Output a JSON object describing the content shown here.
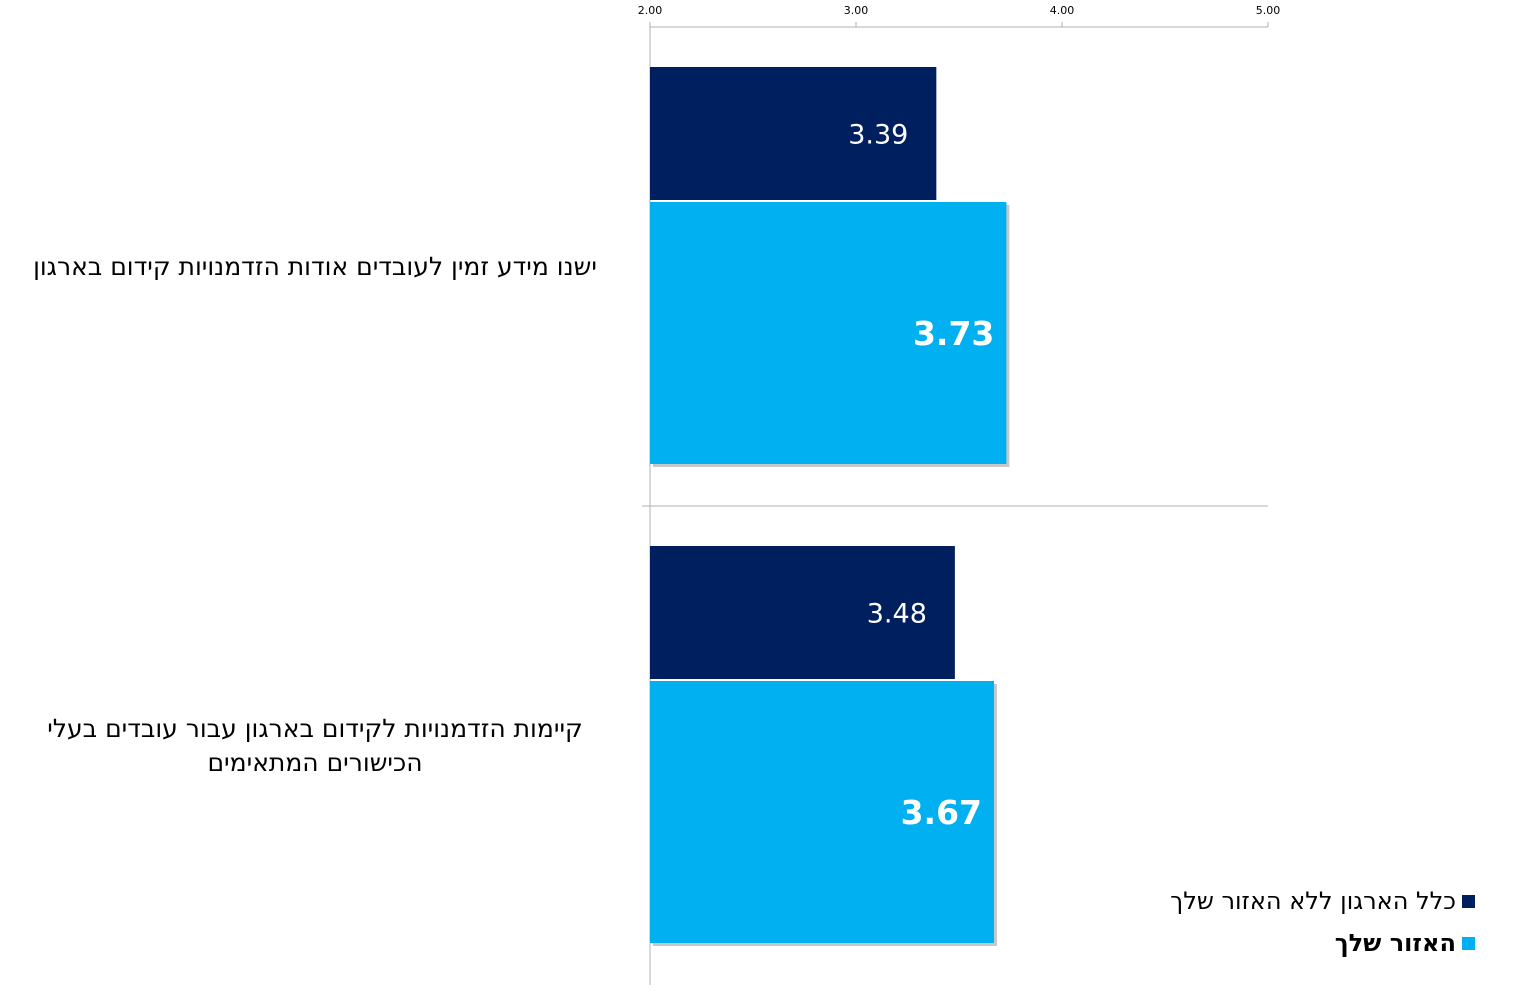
{
  "chart_data": {
    "type": "bar",
    "orientation": "horizontal",
    "xlim": [
      2.0,
      5.0
    ],
    "x_ticks": [
      "2.00",
      "3.00",
      "4.00",
      "5.00"
    ],
    "categories": [
      "ישנו מידע זמין לעובדים אודות הזדמנויות קידום בארגון",
      "קיימות הזדמנויות לקידום בארגון עבור עובדים בעלי הכישורים המתאימים"
    ],
    "series": [
      {
        "name": "כלל הארגון ללא האזור שלך",
        "color": "#001f5f",
        "values": [
          3.39,
          3.48
        ],
        "labels": [
          "3.39",
          "3.48"
        ]
      },
      {
        "name": "האזור שלך",
        "color": "#00b0f0",
        "values": [
          3.73,
          3.67
        ],
        "labels": [
          "3.73",
          "3.67"
        ]
      }
    ],
    "legend_position": "bottom-right",
    "grid": false
  },
  "category_labels": [
    {
      "lines": [
        "ישנו מידע זמין לעובדים אודות הזדמנויות קידום בארגון"
      ]
    },
    {
      "lines": [
        "קיימות הזדמנויות לקידום בארגון עבור עובדים בעלי",
        "הכישורים המתאימים"
      ]
    }
  ],
  "legend": [
    {
      "label": "כלל הארגון ללא האזור שלך",
      "color": "#001f5f",
      "bold": false
    },
    {
      "label": "האזור שלך",
      "color": "#00b0f0",
      "bold": true
    }
  ]
}
